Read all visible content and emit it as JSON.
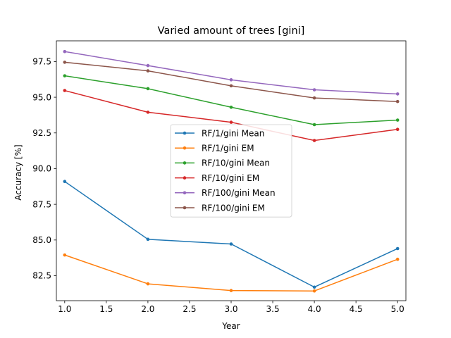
{
  "chart_data": {
    "type": "line",
    "title": "Varied amount of trees [gini]",
    "xlabel": "Year",
    "ylabel": "Accuracy [%]",
    "xlim": [
      0.9,
      5.1
    ],
    "ylim": [
      80.75,
      98.95
    ],
    "xticks": [
      1.0,
      1.5,
      2.0,
      2.5,
      3.0,
      3.5,
      4.0,
      4.5,
      5.0
    ],
    "xtick_labels": [
      "1.0",
      "1.5",
      "2.0",
      "2.5",
      "3.0",
      "3.5",
      "4.0",
      "4.5",
      "5.0"
    ],
    "yticks": [
      82.5,
      85.0,
      87.5,
      90.0,
      92.5,
      95.0,
      97.5
    ],
    "ytick_labels": [
      "82.5",
      "85.0",
      "87.5",
      "90.0",
      "92.5",
      "95.0",
      "97.5"
    ],
    "grid": false,
    "legend_position": "center",
    "x": [
      1,
      2,
      3,
      4,
      5
    ],
    "series": [
      {
        "name": "RF/1/gini Mean",
        "color": "#1f77b4",
        "values": [
          89.1,
          85.05,
          84.72,
          81.7,
          84.4
        ]
      },
      {
        "name": "RF/1/gini EM",
        "color": "#ff7f0e",
        "values": [
          83.95,
          81.93,
          81.46,
          81.43,
          83.65
        ]
      },
      {
        "name": "RF/10/gini Mean",
        "color": "#2ca02c",
        "values": [
          96.5,
          95.6,
          94.3,
          93.08,
          93.4
        ]
      },
      {
        "name": "RF/10/gini EM",
        "color": "#d62728",
        "values": [
          95.47,
          93.95,
          93.25,
          91.97,
          92.75
        ]
      },
      {
        "name": "RF/100/gini Mean",
        "color": "#9467bd",
        "values": [
          98.2,
          97.22,
          96.22,
          95.52,
          95.23
        ]
      },
      {
        "name": "RF/100/gini EM",
        "color": "#8c564b",
        "values": [
          97.45,
          96.85,
          95.8,
          94.95,
          94.7
        ]
      }
    ]
  }
}
